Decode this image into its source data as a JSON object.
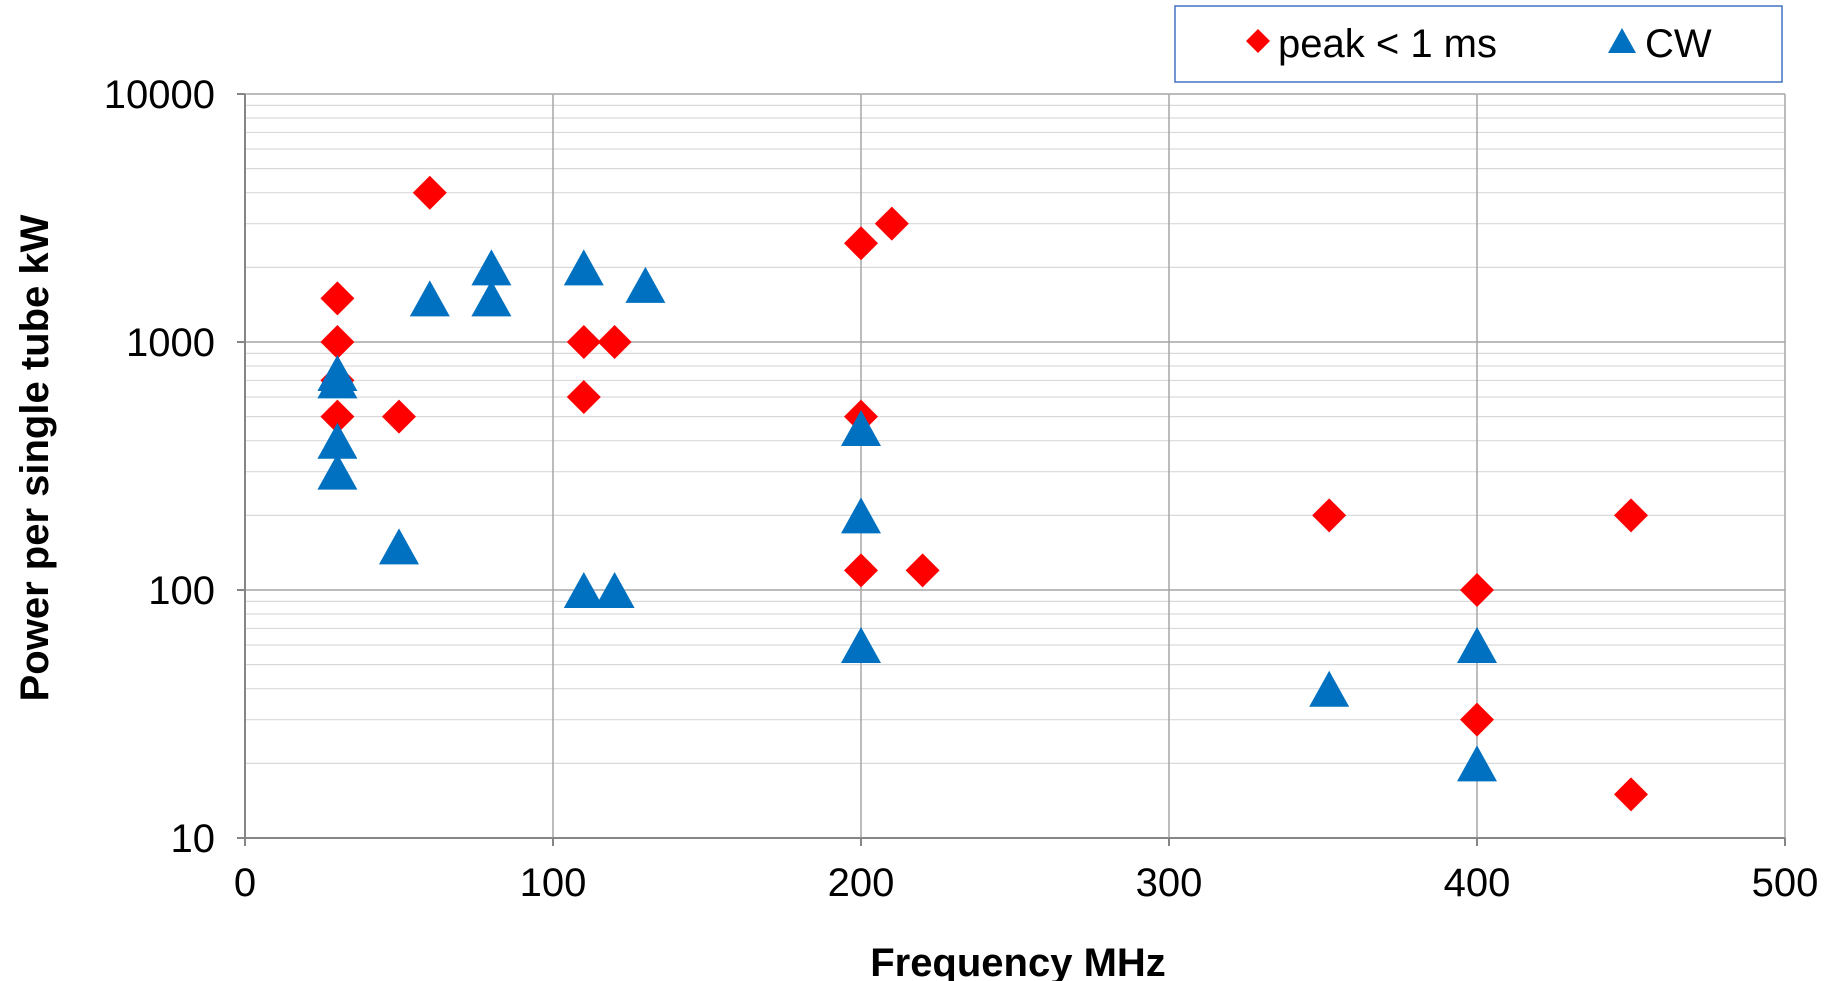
{
  "chart_data": {
    "type": "scatter",
    "xlabel": "Frequency MHz",
    "ylabel": "Power per single tube kW",
    "xlim": [
      0,
      500
    ],
    "ylim": [
      10,
      10000
    ],
    "yscale": "log",
    "x_ticks": [
      "0",
      "100",
      "200",
      "300",
      "400",
      "500"
    ],
    "y_ticks": [
      "10",
      "100",
      "1000",
      "10000"
    ],
    "grid": "on",
    "legend_position": "top-right",
    "series": [
      {
        "name": "peak < 1 ms",
        "marker": "diamond",
        "color": "#ff0000",
        "points": [
          [
            30,
            1500
          ],
          [
            30,
            1000
          ],
          [
            30,
            700
          ],
          [
            30,
            500
          ],
          [
            50,
            500
          ],
          [
            60,
            4000
          ],
          [
            110,
            1000
          ],
          [
            120,
            1000
          ],
          [
            110,
            600
          ],
          [
            200,
            2500
          ],
          [
            210,
            3000
          ],
          [
            200,
            500
          ],
          [
            200,
            120
          ],
          [
            220,
            120
          ],
          [
            352,
            200
          ],
          [
            400,
            100
          ],
          [
            400,
            30
          ],
          [
            450,
            200
          ],
          [
            450,
            15
          ]
        ]
      },
      {
        "name": "CW",
        "marker": "triangle",
        "color": "#0070c0",
        "points": [
          [
            30,
            750
          ],
          [
            30,
            700
          ],
          [
            30,
            400
          ],
          [
            30,
            300
          ],
          [
            50,
            150
          ],
          [
            60,
            1500
          ],
          [
            80,
            2000
          ],
          [
            80,
            1500
          ],
          [
            110,
            2000
          ],
          [
            130,
            1700
          ],
          [
            110,
            100
          ],
          [
            120,
            100
          ],
          [
            200,
            450
          ],
          [
            200,
            200
          ],
          [
            200,
            60
          ],
          [
            352,
            40
          ],
          [
            400,
            60
          ],
          [
            400,
            20
          ]
        ]
      }
    ]
  }
}
